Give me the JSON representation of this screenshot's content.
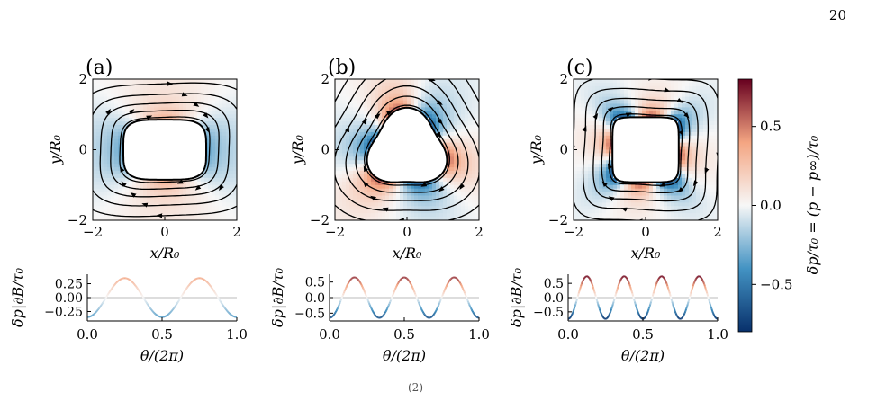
{
  "page": {
    "number": "20",
    "caption_fragment": "(2)"
  },
  "colors": {
    "negative": "#08306b",
    "neutral": "#f7f7f7",
    "positive": "#67001f",
    "streamline": "#000000",
    "zero_line": "#bbbbbb"
  },
  "colorbar": {
    "label": "δp/τ₀ = (p − p∞)/τ₀",
    "range": [
      -0.8,
      0.8
    ],
    "ticks": [
      -0.5,
      0.0,
      0.5
    ],
    "tick_labels": [
      "−0.5",
      "0.0",
      "0.5"
    ]
  },
  "chart_data": [
    {
      "type": "heatmap",
      "panel": "(a)",
      "description_of_field": "pressure field with streamlines around rounded-square obstacle, n = 2 modulation",
      "xlabel": "x/R₀",
      "ylabel": "y/R₀",
      "xlim": [
        -2,
        2
      ],
      "ylim": [
        -2,
        2
      ],
      "xticks": [
        -2,
        0,
        2
      ],
      "yticks": [
        -2,
        0,
        2
      ],
      "tick_labels_x": [
        "−2",
        "0",
        "2"
      ],
      "tick_labels_y": [
        "−2",
        "0",
        "2"
      ],
      "harmonic": 2,
      "amplitude": 0.35
    },
    {
      "type": "heatmap",
      "panel": "(b)",
      "xlabel": "x/R₀",
      "ylabel": "y/R₀",
      "xlim": [
        -2,
        2
      ],
      "ylim": [
        -2,
        2
      ],
      "xticks": [
        -2,
        0,
        2
      ],
      "yticks": [
        -2,
        0,
        2
      ],
      "tick_labels_x": [
        "−2",
        "0",
        "2"
      ],
      "tick_labels_y": [
        "−2",
        "0",
        "2"
      ],
      "harmonic": 3,
      "amplitude": 0.65
    },
    {
      "type": "heatmap",
      "panel": "(c)",
      "xlabel": "x/R₀",
      "ylabel": "y/R₀",
      "xlim": [
        -2,
        2
      ],
      "ylim": [
        -2,
        2
      ],
      "xticks": [
        -2,
        0,
        2
      ],
      "yticks": [
        -2,
        0,
        2
      ],
      "tick_labels_x": [
        "−2",
        "0",
        "2"
      ],
      "tick_labels_y": [
        "−2",
        "0",
        "2"
      ],
      "harmonic": 4,
      "amplitude": 0.75
    },
    {
      "type": "line",
      "panel": "a-bottom",
      "xlabel": "θ/(2π)",
      "ylabel": "δp|∂B/τ₀",
      "xlim": [
        0,
        1
      ],
      "ylim": [
        -0.42,
        0.42
      ],
      "xticks": [
        0.0,
        0.5,
        1.0
      ],
      "tick_labels_x": [
        "0.0",
        "0.5",
        "1.0"
      ],
      "yticks": [
        -0.25,
        0.0,
        0.25
      ],
      "tick_labels_y": [
        "−0.25",
        "0.00",
        "0.25"
      ],
      "harmonic": 2,
      "amplitude": 0.35
    },
    {
      "type": "line",
      "panel": "b-bottom",
      "xlabel": "θ/(2π)",
      "ylabel": "δp|∂B/τ₀",
      "xlim": [
        0,
        1
      ],
      "ylim": [
        -0.75,
        0.75
      ],
      "xticks": [
        0.0,
        0.5,
        1.0
      ],
      "tick_labels_x": [
        "0.0",
        "0.5",
        "1.0"
      ],
      "yticks": [
        -0.5,
        0.0,
        0.5
      ],
      "tick_labels_y": [
        "−0.5",
        "0.0",
        "0.5"
      ],
      "harmonic": 3,
      "amplitude": 0.65
    },
    {
      "type": "line",
      "panel": "c-bottom",
      "xlabel": "θ/(2π)",
      "ylabel": "δp|∂B/τ₀",
      "xlim": [
        0,
        1
      ],
      "ylim": [
        -0.82,
        0.82
      ],
      "xticks": [
        0.0,
        0.5,
        1.0
      ],
      "tick_labels_x": [
        "0.0",
        "0.5",
        "1.0"
      ],
      "yticks": [
        -0.5,
        0.0,
        0.5
      ],
      "tick_labels_y": [
        "−0.5",
        "0.0",
        "0.5"
      ],
      "harmonic": 4,
      "amplitude": 0.75
    }
  ]
}
